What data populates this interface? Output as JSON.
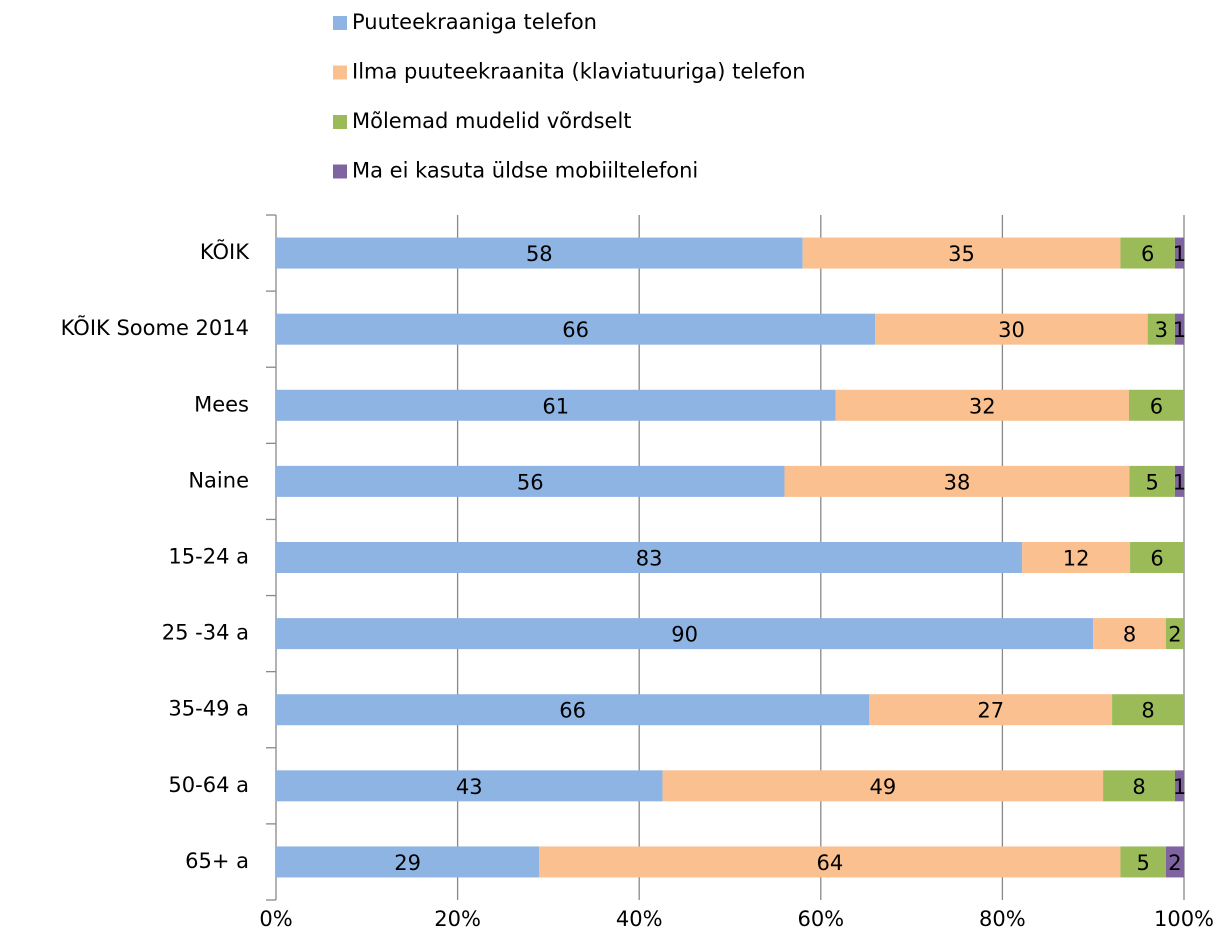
{
  "chart_data": {
    "type": "bar",
    "orientation": "horizontal",
    "stacking": "percent",
    "categories": [
      "KÕIK",
      "KÕIK Soome 2014",
      "Mees",
      "Naine",
      "15-24 a",
      "25 -34 a",
      "35-49 a",
      "50-64 a",
      "65+ a"
    ],
    "series": [
      {
        "name": "Puuteekraaniga telefon",
        "color": "#8EB4E3",
        "values": [
          58,
          66,
          61,
          56,
          83,
          90,
          66,
          43,
          29
        ]
      },
      {
        "name": "Ilma puuteekraanita (klaviatuuriga) telefon",
        "color": "#FAC090",
        "values": [
          35,
          30,
          32,
          38,
          12,
          8,
          27,
          49,
          64
        ]
      },
      {
        "name": "Mõlemad mudelid võrdselt",
        "color": "#9BBB59",
        "values": [
          6,
          3,
          6,
          5,
          6,
          2,
          8,
          8,
          5
        ]
      },
      {
        "name": "Ma ei kasuta üldse mobiiltelefoni",
        "color": "#8064A2",
        "values": [
          1,
          1,
          null,
          1,
          null,
          null,
          null,
          1,
          2
        ]
      }
    ],
    "xlim": [
      0,
      100
    ],
    "xticks": [
      {
        "value": 0,
        "label": "0%"
      },
      {
        "value": 20,
        "label": "20%"
      },
      {
        "value": 40,
        "label": "40%"
      },
      {
        "value": 60,
        "label": "60%"
      },
      {
        "value": 80,
        "label": "80%"
      },
      {
        "value": 100,
        "label": "100%"
      }
    ],
    "grid": true,
    "legend": "top"
  }
}
